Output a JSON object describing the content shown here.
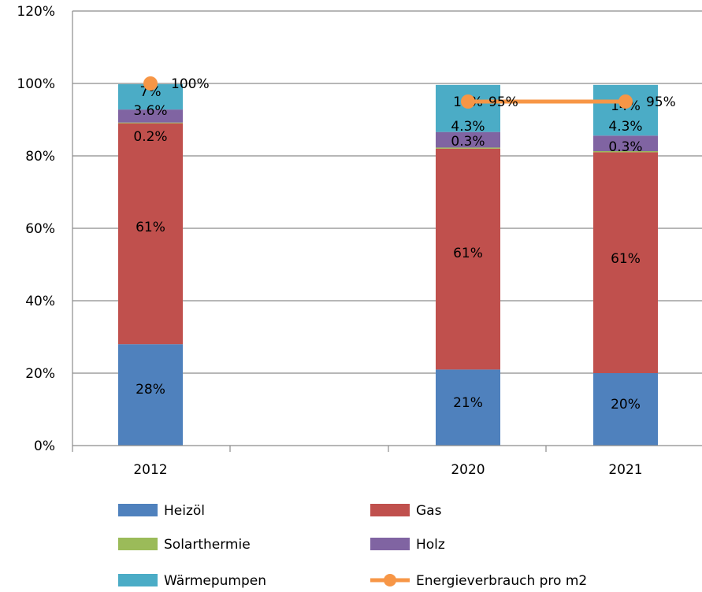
{
  "chart_data": {
    "type": "bar",
    "stacked": true,
    "categories": [
      "2012",
      "2020",
      "2021"
    ],
    "x_positions": [
      2012,
      2020,
      2021
    ],
    "ylim": [
      0,
      120
    ],
    "yticks": [
      "0%",
      "20%",
      "40%",
      "60%",
      "80%",
      "100%",
      "120%"
    ],
    "grid": true,
    "legend_position": "bottom",
    "series": [
      {
        "name": "Heizöl",
        "color": "#4f81bd",
        "values": [
          28,
          21,
          20
        ],
        "labels": [
          "28%",
          "21%",
          "20%"
        ]
      },
      {
        "name": "Gas",
        "color": "#c0504d",
        "values": [
          61,
          61,
          61
        ],
        "labels": [
          "61%",
          "61%",
          "61%"
        ]
      },
      {
        "name": "Solarthermie",
        "color": "#9bbb59",
        "values": [
          0.2,
          0.3,
          0.3
        ],
        "labels": [
          "0.2%",
          "0.3%",
          "0.3%"
        ]
      },
      {
        "name": "Holz",
        "color": "#8064a2",
        "values": [
          3.6,
          4.3,
          4.3
        ],
        "labels": [
          "3.6%",
          "4.3%",
          "4.3%"
        ]
      },
      {
        "name": "Wärmepumpen",
        "color": "#4bacc6",
        "values": [
          7,
          13,
          14
        ],
        "labels": [
          "7%",
          "13%",
          "14%"
        ]
      }
    ],
    "line": {
      "name": "Energieverbrauch pro m2",
      "color": "#f79646",
      "values": [
        100,
        95,
        95
      ],
      "labels": [
        "100%",
        "95%",
        "95%"
      ]
    },
    "legend_order": [
      "Heizöl",
      "Gas",
      "Solarthermie",
      "Holz",
      "Wärmepumpen",
      "Energieverbrauch pro m2"
    ]
  }
}
